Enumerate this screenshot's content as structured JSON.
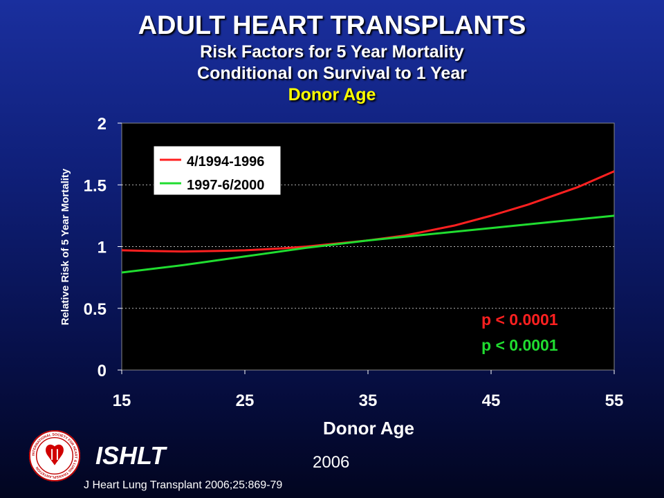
{
  "header": {
    "title": "ADULT HEART TRANSPLANTS",
    "subtitle_line1": "Risk Factors for 5 Year Mortality",
    "subtitle_line2": "Conditional on Survival to 1 Year",
    "subtitle_line3": "Donor Age"
  },
  "chart_data": {
    "type": "line",
    "xlabel": "Donor Age",
    "ylabel": "Relative Risk of 5 Year Mortality",
    "xlim": [
      15,
      55
    ],
    "ylim": [
      0,
      2
    ],
    "x_ticks": [
      "15",
      "25",
      "35",
      "45",
      "55"
    ],
    "y_ticks": [
      "0",
      "0.5",
      "1",
      "1.5",
      "2"
    ],
    "grid": "horizontal dotted",
    "legend_position": "top-left",
    "series": [
      {
        "name": "4/1994-1996",
        "color": "#ff2020",
        "x": [
          15,
          17,
          20,
          23,
          25,
          28,
          30,
          33,
          35,
          38,
          40,
          42,
          45,
          48,
          50,
          52,
          55
        ],
        "y": [
          0.97,
          0.965,
          0.96,
          0.965,
          0.97,
          0.985,
          1.0,
          1.03,
          1.05,
          1.09,
          1.13,
          1.17,
          1.25,
          1.34,
          1.41,
          1.48,
          1.61
        ]
      },
      {
        "name": "1997-6/2000",
        "color": "#20dd30",
        "x": [
          15,
          20,
          25,
          30,
          35,
          40,
          45,
          50,
          55
        ],
        "y": [
          0.79,
          0.85,
          0.92,
          0.99,
          1.05,
          1.1,
          1.15,
          1.2,
          1.25
        ]
      }
    ],
    "annotations": [
      {
        "text": "p < 0.0001",
        "color": "#ff2020"
      },
      {
        "text": "p < 0.0001",
        "color": "#20dd30"
      }
    ]
  },
  "footer": {
    "logo_text": "INTERNATIONAL SOCIETY FOR HEART & LUNG TRANSPLANTATION",
    "org": "ISHLT",
    "year": "2006",
    "citation": "J Heart Lung Transplant 2006;25:869-79"
  }
}
